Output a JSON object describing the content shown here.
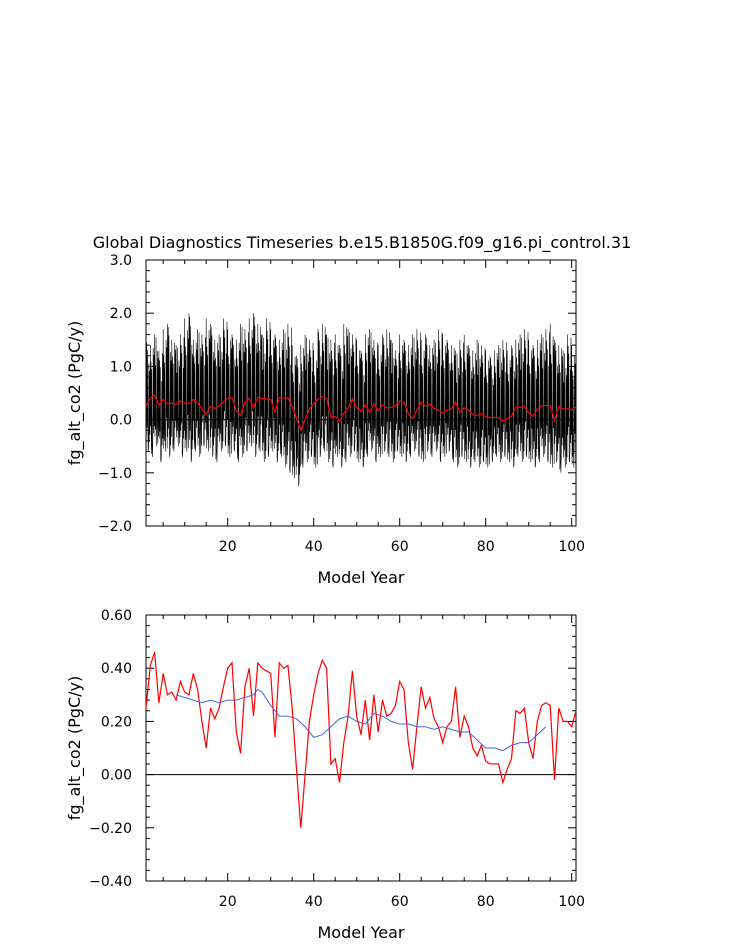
{
  "title": "Global Diagnostics Timeseries b.e15.B1850G.f09_g16.pi_control.31",
  "colors": {
    "monthly": "#000000",
    "annual": "#ff0000",
    "running": "#4466dd",
    "zero": "#000000"
  },
  "chart_data": [
    {
      "type": "line",
      "xlabel": "Model Year",
      "ylabel": "fg_alt_co2 (PgC/y)",
      "xlim": [
        1,
        101
      ],
      "ylim": [
        -2.0,
        3.0
      ],
      "xticks": [
        20,
        40,
        60,
        80,
        100
      ],
      "xtick_labels": [
        "20",
        "40",
        "60",
        "80",
        "100"
      ],
      "yticks": [
        -2.0,
        -1.0,
        0.0,
        1.0,
        2.0,
        3.0
      ],
      "ytick_labels": [
        "−2.0",
        "−1.0",
        "0.0",
        "1.0",
        "2.0",
        "3.0"
      ],
      "zero_line": 0.0,
      "series": [
        {
          "style": "monthly",
          "annual_peak": [
            1.5,
            1.4,
            1.6,
            1.3,
            1.7,
            1.8,
            1.5,
            1.4,
            1.6,
            1.9,
            2.0,
            1.5,
            1.7,
            1.6,
            1.9,
            1.8,
            1.5,
            1.6,
            1.9,
            1.7,
            1.6,
            1.5,
            1.8,
            1.7,
            1.9,
            2.0,
            1.8,
            1.6,
            1.9,
            1.7,
            1.6,
            1.5,
            1.7,
            1.8,
            1.4,
            1.2,
            1.4,
            1.6,
            1.5,
            1.3,
            1.7,
            1.8,
            1.6,
            1.5,
            1.6,
            1.4,
            1.8,
            1.7,
            1.6,
            1.5,
            1.3,
            1.6,
            1.7,
            1.5,
            1.4,
            1.6,
            1.7,
            1.5,
            1.3,
            1.6,
            1.5,
            1.4,
            1.6,
            1.7,
            1.5,
            1.6,
            1.4,
            1.5,
            1.7,
            1.6,
            1.5,
            1.4,
            1.3,
            1.5,
            1.6,
            1.4,
            1.3,
            1.5,
            1.4,
            1.3,
            1.2,
            1.3,
            1.4,
            1.5,
            1.3,
            1.4,
            1.5,
            1.6,
            1.7,
            1.5,
            1.4,
            1.5,
            1.6,
            1.7,
            1.8,
            1.5,
            1.4,
            1.3,
            1.6,
            1.4
          ],
          "annual_trough": [
            -0.6,
            -0.7,
            -0.5,
            -0.8,
            -0.6,
            -0.7,
            -0.6,
            -0.5,
            -0.7,
            -0.6,
            -0.8,
            -0.6,
            -0.7,
            -0.5,
            -0.6,
            -0.7,
            -0.8,
            -0.6,
            -0.5,
            -0.7,
            -0.6,
            -0.8,
            -0.7,
            -0.6,
            -0.5,
            -0.7,
            -0.6,
            -0.8,
            -0.7,
            -0.6,
            -0.8,
            -0.7,
            -0.9,
            -1.0,
            -1.1,
            -1.25,
            -0.9,
            -0.8,
            -0.7,
            -0.9,
            -0.7,
            -0.6,
            -0.8,
            -0.9,
            -0.7,
            -0.9,
            -0.8,
            -0.7,
            -0.6,
            -0.8,
            -0.9,
            -0.7,
            -0.6,
            -0.8,
            -0.7,
            -0.6,
            -0.7,
            -0.8,
            -0.6,
            -0.7,
            -0.8,
            -0.7,
            -0.6,
            -0.7,
            -0.8,
            -0.6,
            -0.7,
            -0.6,
            -0.8,
            -0.7,
            -0.6,
            -0.8,
            -0.9,
            -0.7,
            -0.8,
            -0.9,
            -0.8,
            -0.9,
            -0.8,
            -0.9,
            -0.8,
            -0.7,
            -0.8,
            -0.7,
            -0.8,
            -0.9,
            -0.7,
            -0.8,
            -0.7,
            -0.8,
            -0.9,
            -0.8,
            -0.7,
            -0.8,
            -0.9,
            -0.8,
            -1.0,
            -0.9,
            -0.8,
            -0.9
          ]
        },
        {
          "style": "annual",
          "x": [
            1,
            2,
            3,
            4,
            5,
            6,
            7,
            8,
            9,
            10,
            11,
            12,
            13,
            14,
            15,
            16,
            17,
            18,
            19,
            20,
            21,
            22,
            23,
            24,
            25,
            26,
            27,
            28,
            29,
            30,
            31,
            32,
            33,
            34,
            35,
            36,
            37,
            38,
            39,
            40,
            41,
            42,
            43,
            44,
            45,
            46,
            47,
            48,
            49,
            50,
            51,
            52,
            53,
            54,
            55,
            56,
            57,
            58,
            59,
            60,
            61,
            62,
            63,
            64,
            65,
            66,
            67,
            68,
            69,
            70,
            71,
            72,
            73,
            74,
            75,
            76,
            77,
            78,
            79,
            80,
            81,
            82,
            83,
            84,
            85,
            86,
            87,
            88,
            89,
            90,
            91,
            92,
            93,
            94,
            95,
            96,
            97,
            98,
            99,
            100,
            101
          ],
          "y": [
            0.25,
            0.41,
            0.46,
            0.27,
            0.38,
            0.3,
            0.31,
            0.28,
            0.35,
            0.31,
            0.3,
            0.38,
            0.32,
            0.2,
            0.1,
            0.25,
            0.21,
            0.25,
            0.33,
            0.4,
            0.42,
            0.16,
            0.08,
            0.33,
            0.4,
            0.22,
            0.42,
            0.4,
            0.39,
            0.38,
            0.14,
            0.42,
            0.4,
            0.41,
            0.25,
            0.02,
            -0.2,
            0.0,
            0.2,
            0.3,
            0.38,
            0.43,
            0.4,
            0.04,
            0.06,
            -0.03,
            0.12,
            0.22,
            0.39,
            0.22,
            0.15,
            0.28,
            0.13,
            0.3,
            0.16,
            0.28,
            0.22,
            0.23,
            0.26,
            0.35,
            0.32,
            0.12,
            0.02,
            0.18,
            0.33,
            0.25,
            0.29,
            0.21,
            0.18,
            0.12,
            0.18,
            0.2,
            0.33,
            0.14,
            0.22,
            0.18,
            0.1,
            0.07,
            0.11,
            0.05,
            0.04,
            0.04,
            0.04,
            -0.03,
            0.02,
            0.06,
            0.24,
            0.23,
            0.25,
            0.12,
            0.06,
            0.2,
            0.26,
            0.27,
            0.26,
            -0.02,
            0.25,
            0.2,
            0.2,
            0.18,
            0.24
          ]
        },
        {
          "style": "running",
          "x": [],
          "y": []
        }
      ]
    },
    {
      "type": "line",
      "xlabel": "Model Year",
      "ylabel": "fg_alt_co2 (PgC/y)",
      "xlim": [
        1,
        101
      ],
      "ylim": [
        -0.4,
        0.6
      ],
      "xticks": [
        20,
        40,
        60,
        80,
        100
      ],
      "xtick_labels": [
        "20",
        "40",
        "60",
        "80",
        "100"
      ],
      "yticks": [
        -0.4,
        -0.2,
        0.0,
        0.2,
        0.4,
        0.6
      ],
      "ytick_labels": [
        "−0.40",
        "−0.20",
        "0.00",
        "0.20",
        "0.40",
        "0.60"
      ],
      "zero_line": 0.0,
      "series": [
        {
          "style": "annual",
          "x": [
            1,
            2,
            3,
            4,
            5,
            6,
            7,
            8,
            9,
            10,
            11,
            12,
            13,
            14,
            15,
            16,
            17,
            18,
            19,
            20,
            21,
            22,
            23,
            24,
            25,
            26,
            27,
            28,
            29,
            30,
            31,
            32,
            33,
            34,
            35,
            36,
            37,
            38,
            39,
            40,
            41,
            42,
            43,
            44,
            45,
            46,
            47,
            48,
            49,
            50,
            51,
            52,
            53,
            54,
            55,
            56,
            57,
            58,
            59,
            60,
            61,
            62,
            63,
            64,
            65,
            66,
            67,
            68,
            69,
            70,
            71,
            72,
            73,
            74,
            75,
            76,
            77,
            78,
            79,
            80,
            81,
            82,
            83,
            84,
            85,
            86,
            87,
            88,
            89,
            90,
            91,
            92,
            93,
            94,
            95,
            96,
            97,
            98,
            99,
            100,
            101
          ],
          "y": [
            0.25,
            0.41,
            0.46,
            0.27,
            0.38,
            0.3,
            0.31,
            0.28,
            0.35,
            0.31,
            0.3,
            0.38,
            0.32,
            0.2,
            0.1,
            0.25,
            0.21,
            0.25,
            0.33,
            0.4,
            0.42,
            0.16,
            0.08,
            0.33,
            0.4,
            0.22,
            0.42,
            0.4,
            0.39,
            0.38,
            0.14,
            0.42,
            0.4,
            0.41,
            0.25,
            0.02,
            -0.2,
            0.0,
            0.2,
            0.3,
            0.38,
            0.43,
            0.4,
            0.04,
            0.06,
            -0.03,
            0.12,
            0.22,
            0.39,
            0.22,
            0.15,
            0.28,
            0.13,
            0.3,
            0.16,
            0.28,
            0.22,
            0.23,
            0.26,
            0.35,
            0.32,
            0.12,
            0.02,
            0.18,
            0.33,
            0.25,
            0.29,
            0.21,
            0.18,
            0.12,
            0.18,
            0.2,
            0.33,
            0.14,
            0.22,
            0.18,
            0.1,
            0.07,
            0.11,
            0.05,
            0.04,
            0.04,
            0.04,
            -0.03,
            0.02,
            0.06,
            0.24,
            0.23,
            0.25,
            0.12,
            0.06,
            0.2,
            0.26,
            0.27,
            0.26,
            -0.02,
            0.25,
            0.2,
            0.2,
            0.18,
            0.24
          ]
        },
        {
          "style": "running",
          "x": [
            8,
            10,
            12,
            14,
            16,
            18,
            20,
            22,
            24,
            26,
            27,
            28,
            30,
            32,
            34,
            36,
            38,
            40,
            42,
            44,
            46,
            48,
            50,
            52,
            54,
            56,
            58,
            60,
            62,
            64,
            66,
            68,
            70,
            72,
            74,
            76,
            78,
            80,
            82,
            84,
            86,
            88,
            90,
            92,
            94
          ],
          "y": [
            0.3,
            0.29,
            0.28,
            0.27,
            0.28,
            0.27,
            0.28,
            0.28,
            0.29,
            0.3,
            0.32,
            0.31,
            0.26,
            0.22,
            0.22,
            0.21,
            0.18,
            0.14,
            0.15,
            0.18,
            0.21,
            0.22,
            0.2,
            0.19,
            0.23,
            0.22,
            0.2,
            0.19,
            0.19,
            0.18,
            0.18,
            0.17,
            0.18,
            0.17,
            0.16,
            0.16,
            0.13,
            0.1,
            0.1,
            0.09,
            0.11,
            0.12,
            0.12,
            0.15,
            0.18
          ]
        }
      ]
    }
  ]
}
